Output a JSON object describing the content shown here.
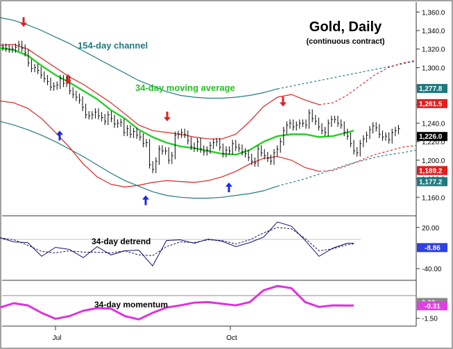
{
  "chart_data": {
    "type": "line",
    "title": "Gold, Daily",
    "subtitle": "(continuous contract)",
    "x_ticks": [
      "Jul",
      "Oct"
    ],
    "main": {
      "ylim": [
        1140,
        1370
      ],
      "y_ticks": [
        1360,
        1340,
        1320,
        1300,
        1280,
        1260,
        1240,
        1220,
        1200,
        1180,
        1160
      ],
      "y_tick_labels": [
        "1,360.0",
        "1,340.0",
        "1,320.0",
        "1,300.0",
        "1,280.0",
        "1,260.0",
        "1,240.0",
        "1,220.0",
        "1,200.0",
        "1,180.0",
        "1,160.0"
      ],
      "series": [
        {
          "name": "154-day channel",
          "color": "#1f7a80",
          "x": [
            0,
            20,
            40,
            60,
            80,
            100,
            120,
            140,
            160,
            180,
            200,
            220,
            240,
            260,
            280,
            300,
            320,
            340,
            360,
            380,
            400,
            420,
            440,
            460,
            480,
            500,
            520,
            540,
            560,
            580,
            600
          ],
          "upper": [
            1354,
            1351,
            1346,
            1340,
            1333,
            1326,
            1318,
            1310,
            1302,
            1294,
            1286,
            1280,
            1274,
            1270,
            1268,
            1267,
            1267,
            1268,
            1270,
            1273,
            1277,
            1280,
            1283,
            1286,
            1289,
            1292,
            1295,
            1298,
            1301,
            1304,
            1307
          ],
          "lower": [
            1242,
            1238,
            1233,
            1227,
            1220,
            1212,
            1204,
            1195,
            1186,
            1178,
            1172,
            1166,
            1162,
            1160,
            1159,
            1159,
            1160,
            1162,
            1164,
            1167,
            1172,
            1176,
            1180,
            1185,
            1190,
            1195,
            1199,
            1203,
            1206,
            1208,
            1211
          ]
        },
        {
          "name": "red_envelope",
          "color": "#e02020",
          "x": [
            0,
            20,
            40,
            60,
            80,
            100,
            120,
            140,
            160,
            180,
            200,
            220,
            240,
            260,
            280,
            300,
            320,
            340,
            360,
            380,
            400,
            420,
            440,
            460,
            480,
            500,
            520,
            540,
            560,
            580,
            600
          ],
          "upper": [
            1324,
            1325,
            1320,
            1310,
            1300,
            1290,
            1282,
            1272,
            1262,
            1250,
            1238,
            1232,
            1230,
            1228,
            1225,
            1223,
            1223,
            1228,
            1242,
            1258,
            1268,
            1271,
            1265,
            1260,
            1262,
            1270,
            1281,
            1292,
            1300,
            1305,
            1308
          ],
          "lower": [
            1264,
            1262,
            1256,
            1245,
            1230,
            1214,
            1196,
            1182,
            1174,
            1171,
            1173,
            1176,
            1178,
            1177,
            1176,
            1178,
            1182,
            1188,
            1196,
            1202,
            1204,
            1200,
            1192,
            1188,
            1189,
            1194,
            1200,
            1206,
            1210,
            1214,
            1216
          ]
        },
        {
          "name": "34-day moving average",
          "color": "#22d022",
          "x": [
            0,
            20,
            40,
            60,
            80,
            100,
            120,
            140,
            160,
            180,
            200,
            220,
            240,
            260,
            280,
            300,
            320,
            340,
            360,
            380,
            400,
            420,
            440,
            460,
            480,
            500,
            510
          ],
          "values": [
            1321,
            1319,
            1313,
            1302,
            1292,
            1284,
            1275,
            1266,
            1254,
            1245,
            1233,
            1225,
            1219,
            1215,
            1213,
            1210,
            1207,
            1206,
            1211,
            1220,
            1226,
            1228,
            1228,
            1225,
            1226,
            1230,
            1232
          ]
        }
      ],
      "price": {
        "x_start": 4,
        "x_step": 4.6,
        "close": [
          1322,
          1321,
          1320,
          1320,
          1322,
          1325,
          1321,
          1316,
          1305,
          1299,
          1300,
          1297,
          1292,
          1288,
          1285,
          1279,
          1280,
          1281,
          1288,
          1283,
          1287,
          1275,
          1271,
          1268,
          1265,
          1257,
          1249,
          1248,
          1249,
          1252,
          1248,
          1246,
          1242,
          1249,
          1245,
          1239,
          1240,
          1241,
          1230,
          1234,
          1228,
          1231,
          1227,
          1225,
          1218,
          1219,
          1195,
          1190,
          1199,
          1212,
          1210,
          1210,
          1200,
          1205,
          1227,
          1228,
          1230,
          1228,
          1221,
          1215,
          1213,
          1220,
          1212,
          1209,
          1211,
          1216,
          1219,
          1220,
          1214,
          1207,
          1211,
          1210,
          1218,
          1214,
          1213,
          1209,
          1207,
          1203,
          1199,
          1197,
          1212,
          1208,
          1205,
          1202,
          1199,
          1208,
          1212,
          1220,
          1232,
          1238,
          1240,
          1236,
          1238,
          1240,
          1240,
          1238,
          1251,
          1245,
          1242,
          1236,
          1232,
          1230,
          1240,
          1244,
          1244,
          1240,
          1238,
          1230,
          1226,
          1218,
          1210,
          1208,
          1218,
          1223,
          1227,
          1233,
          1237,
          1235,
          1228,
          1225,
          1226,
          1222,
          1230,
          1232,
          1234
        ],
        "last": "1,226.0"
      },
      "badges": [
        {
          "text": "1,277.8",
          "value": 1277.8,
          "bg": "#1f7a80",
          "fg": "#ffffff"
        },
        {
          "text": "1,261.5",
          "value": 1261.5,
          "bg": "#e02020",
          "fg": "#ffffff"
        },
        {
          "text": "1,226.0",
          "value": 1226.0,
          "bg": "#000000",
          "fg": "#ffffff"
        },
        {
          "text": "1,189.2",
          "value": 1189.2,
          "bg": "#e02020",
          "fg": "#ffffff"
        },
        {
          "text": "1,177.2",
          "value": 1177.2,
          "bg": "#1f7a80",
          "fg": "#ffffff"
        }
      ],
      "arrows_down": [
        {
          "x": 34,
          "value": 1344
        },
        {
          "x": 98,
          "value": 1282
        },
        {
          "x": 241,
          "value": 1242
        },
        {
          "x": 408,
          "value": 1258
        }
      ],
      "arrows_up": [
        {
          "x": 86,
          "value": 1232
        },
        {
          "x": 210,
          "value": 1162
        },
        {
          "x": 330,
          "value": 1176
        }
      ]
    },
    "detrend": {
      "title": "34-day detrend",
      "ylim": [
        -55,
        35
      ],
      "y_ticks": [
        20,
        -40
      ],
      "y_tick_labels": [
        "20.00",
        "-40.00"
      ],
      "badge": {
        "text": "-8.86",
        "value": -8.86,
        "bg": "#3040e0",
        "fg": "#ffffff"
      },
      "x": [
        0,
        20,
        40,
        60,
        80,
        100,
        120,
        140,
        160,
        180,
        200,
        220,
        240,
        260,
        280,
        300,
        320,
        340,
        360,
        380,
        400,
        420,
        440,
        460,
        480,
        500,
        510
      ],
      "series_raw": [
        5,
        -1,
        -2,
        -22,
        -9,
        -12,
        -24,
        -8,
        -20,
        -14,
        -13,
        -36,
        1,
        2,
        -3,
        3,
        0,
        -8,
        -2,
        6,
        28,
        22,
        1,
        -22,
        -10,
        -3,
        -3
      ],
      "series_smooth": [
        5,
        2,
        -6,
        -15,
        -17,
        -14,
        -16,
        -16,
        -17,
        -14,
        -20,
        -21,
        -8,
        -1,
        -2,
        2,
        1,
        -4,
        2,
        12,
        20,
        18,
        4,
        -14,
        -11,
        -5,
        -4
      ]
    },
    "momentum": {
      "title": "34-day momentum",
      "ylim": [
        -2.1,
        1.9
      ],
      "y_ticks": [
        -1.5
      ],
      "y_tick_labels": [
        "-1.50"
      ],
      "badge_zero": {
        "text": "0.00",
        "value": 0.0
      },
      "badge": {
        "text": "-0.31",
        "value": -0.31,
        "bg": "#e040e0",
        "fg": "#ffffff"
      },
      "x": [
        0,
        20,
        40,
        60,
        80,
        100,
        120,
        140,
        160,
        180,
        200,
        220,
        240,
        260,
        280,
        300,
        320,
        340,
        360,
        380,
        400,
        420,
        440,
        460,
        480,
        500,
        510
      ],
      "values": [
        -0.5,
        -0.1,
        -0.3,
        -1.0,
        -1.55,
        -1.3,
        -0.8,
        -0.55,
        -0.6,
        -1.3,
        -1.6,
        -1.0,
        -0.5,
        -0.3,
        -0.05,
        0.0,
        -0.15,
        -0.3,
        0.0,
        1.1,
        1.5,
        1.3,
        0.0,
        -0.45,
        -0.3,
        -0.32,
        -0.31
      ]
    },
    "annotations": [
      {
        "text": "154-day channel",
        "color": "#1f7a80"
      },
      {
        "text": "34-day moving average",
        "color": "#22c022"
      }
    ]
  }
}
